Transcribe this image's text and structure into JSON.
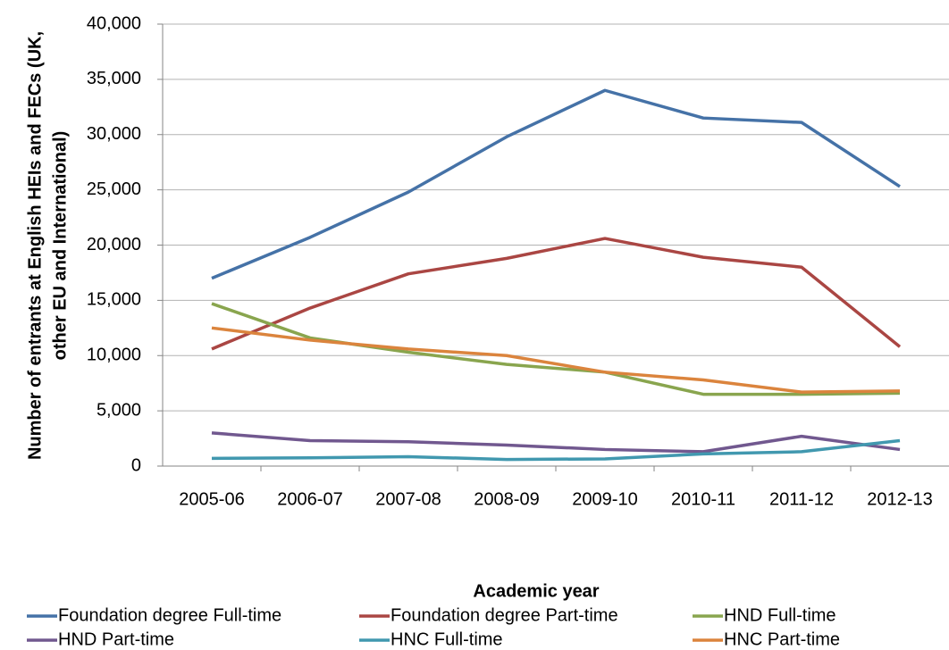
{
  "chart_data": {
    "type": "line",
    "x_label": "Academic year",
    "y_label": [
      "Number of entrants at English HEIs and FECs (UK,",
      "other EU and International)"
    ],
    "categories": [
      "2005-06",
      "2006-07",
      "2007-08",
      "2008-09",
      "2009-10",
      "2010-11",
      "2011-12",
      "2012-13"
    ],
    "series": [
      {
        "name": "Foundation degree Full-time",
        "color": "#4572a7",
        "values": [
          17000,
          20700,
          24800,
          29800,
          34000,
          31500,
          31100,
          25300
        ]
      },
      {
        "name": "Foundation degree Part-time",
        "color": "#aa4643",
        "values": [
          10600,
          14300,
          17400,
          18800,
          20600,
          18900,
          18000,
          10800
        ]
      },
      {
        "name": "HND Full-time",
        "color": "#89a54e",
        "values": [
          14700,
          11600,
          10300,
          9200,
          8500,
          6500,
          6500,
          6600
        ]
      },
      {
        "name": "HND Part-time",
        "color": "#71588f",
        "values": [
          3000,
          2300,
          2200,
          1900,
          1500,
          1300,
          2700,
          1500
        ]
      },
      {
        "name": "HNC Full-time",
        "color": "#4198af",
        "values": [
          700,
          750,
          850,
          600,
          650,
          1100,
          1300,
          2300
        ]
      },
      {
        "name": "HNC Part-time",
        "color": "#db843d",
        "values": [
          12500,
          11400,
          10600,
          10000,
          8500,
          7800,
          6700,
          6800
        ]
      }
    ],
    "ylim": [
      0,
      40000
    ],
    "yticks": [
      0,
      {
        "value": 5000,
        "label": "5,000"
      },
      {
        "value": 10000,
        "label": "10,000"
      },
      {
        "value": 15000,
        "label": "15,000"
      },
      {
        "value": 20000,
        "label": "20,000"
      },
      {
        "value": 25000,
        "label": "25,000"
      },
      {
        "value": 30000,
        "label": "30,000"
      },
      {
        "value": 35000,
        "label": "35,000"
      },
      {
        "value": 40000,
        "label": "40,000"
      }
    ],
    "grid": true,
    "legend": "bottom"
  }
}
